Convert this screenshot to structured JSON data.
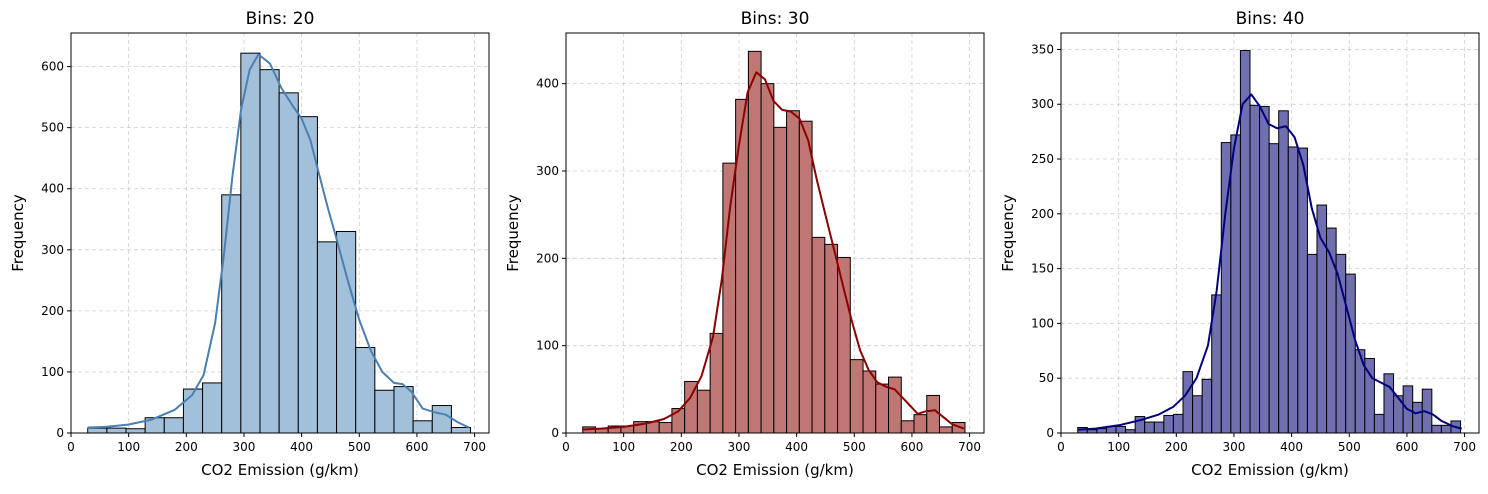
{
  "chart_data": [
    {
      "type": "bar",
      "title": "Bins: 20",
      "xlabel": "CO2 Emission (g/km)",
      "ylabel": "Frequency",
      "xlim": [
        0,
        725
      ],
      "ylim": [
        0,
        655
      ],
      "xticks": [
        0,
        100,
        200,
        300,
        400,
        500,
        600,
        700
      ],
      "yticks": [
        0,
        100,
        200,
        300,
        400,
        500,
        600
      ],
      "grid": true,
      "bar_color": "#a3c0db",
      "kde_color": "#4a7fb0",
      "bin_start": 29,
      "bin_width": 33.2,
      "values": [
        8,
        8,
        7,
        25,
        25,
        72,
        82,
        390,
        622,
        595,
        557,
        518,
        313,
        330,
        140,
        70,
        76,
        20,
        45,
        9
      ],
      "kde": [
        [
          29,
          9
        ],
        [
          60,
          10
        ],
        [
          100,
          14
        ],
        [
          140,
          22
        ],
        [
          180,
          38
        ],
        [
          210,
          62
        ],
        [
          230,
          95
        ],
        [
          250,
          180
        ],
        [
          265,
          290
        ],
        [
          280,
          420
        ],
        [
          295,
          530
        ],
        [
          310,
          595
        ],
        [
          325,
          620
        ],
        [
          345,
          605
        ],
        [
          365,
          565
        ],
        [
          385,
          535
        ],
        [
          400,
          515
        ],
        [
          415,
          480
        ],
        [
          430,
          425
        ],
        [
          445,
          370
        ],
        [
          460,
          320
        ],
        [
          480,
          250
        ],
        [
          500,
          185
        ],
        [
          520,
          135
        ],
        [
          540,
          100
        ],
        [
          560,
          82
        ],
        [
          575,
          80
        ],
        [
          590,
          68
        ],
        [
          610,
          40
        ],
        [
          630,
          34
        ],
        [
          650,
          30
        ],
        [
          670,
          18
        ],
        [
          690,
          9
        ]
      ]
    },
    {
      "type": "bar",
      "title": "Bins: 30",
      "xlabel": "CO2 Emission (g/km)",
      "ylabel": "Frequency",
      "xlim": [
        0,
        725
      ],
      "ylim": [
        0,
        458
      ],
      "xticks": [
        0,
        100,
        200,
        300,
        400,
        500,
        600,
        700
      ],
      "yticks": [
        0,
        100,
        200,
        300,
        400
      ],
      "grid": true,
      "bar_color": "#c07774",
      "kde_color": "#8b0000",
      "bin_start": 29,
      "bin_width": 22.1,
      "values": [
        7,
        5,
        8,
        8,
        13,
        13,
        12,
        28,
        59,
        49,
        114,
        309,
        382,
        437,
        400,
        350,
        369,
        357,
        224,
        216,
        201,
        84,
        71,
        56,
        64,
        14,
        21,
        43,
        7,
        12
      ],
      "kde": [
        [
          29,
          4
        ],
        [
          60,
          5
        ],
        [
          100,
          7
        ],
        [
          140,
          11
        ],
        [
          170,
          16
        ],
        [
          195,
          25
        ],
        [
          215,
          40
        ],
        [
          235,
          65
        ],
        [
          255,
          110
        ],
        [
          270,
          175
        ],
        [
          285,
          260
        ],
        [
          300,
          330
        ],
        [
          315,
          390
        ],
        [
          330,
          413
        ],
        [
          345,
          405
        ],
        [
          360,
          380
        ],
        [
          375,
          370
        ],
        [
          390,
          368
        ],
        [
          405,
          360
        ],
        [
          420,
          335
        ],
        [
          435,
          290
        ],
        [
          450,
          250
        ],
        [
          465,
          210
        ],
        [
          480,
          170
        ],
        [
          495,
          130
        ],
        [
          510,
          95
        ],
        [
          525,
          72
        ],
        [
          540,
          58
        ],
        [
          555,
          53
        ],
        [
          570,
          50
        ],
        [
          590,
          36
        ],
        [
          610,
          22
        ],
        [
          625,
          25
        ],
        [
          640,
          26
        ],
        [
          655,
          18
        ],
        [
          670,
          10
        ],
        [
          690,
          5
        ]
      ]
    },
    {
      "type": "bar",
      "title": "Bins: 40",
      "xlabel": "CO2 Emission (g/km)",
      "ylabel": "Frequency",
      "xlim": [
        0,
        725
      ],
      "ylim": [
        0,
        365
      ],
      "xticks": [
        0,
        100,
        200,
        300,
        400,
        500,
        600,
        700
      ],
      "yticks": [
        0,
        50,
        100,
        150,
        200,
        250,
        300,
        350
      ],
      "grid": true,
      "bar_color": "#7070b0",
      "kde_color": "#00007f",
      "bin_start": 29,
      "bin_width": 16.6,
      "values": [
        5,
        3,
        4,
        6,
        6,
        3,
        15,
        10,
        10,
        16,
        17,
        56,
        34,
        49,
        126,
        265,
        272,
        349,
        299,
        298,
        264,
        294,
        261,
        260,
        163,
        208,
        187,
        163,
        145,
        76,
        68,
        17,
        54,
        34,
        43,
        28,
        40,
        7,
        7,
        11
      ],
      "kde": [
        [
          29,
          3
        ],
        [
          60,
          4
        ],
        [
          100,
          7
        ],
        [
          140,
          12
        ],
        [
          170,
          17
        ],
        [
          195,
          24
        ],
        [
          215,
          34
        ],
        [
          235,
          50
        ],
        [
          255,
          80
        ],
        [
          270,
          130
        ],
        [
          285,
          200
        ],
        [
          300,
          260
        ],
        [
          315,
          300
        ],
        [
          330,
          309
        ],
        [
          345,
          298
        ],
        [
          360,
          282
        ],
        [
          375,
          278
        ],
        [
          390,
          280
        ],
        [
          405,
          270
        ],
        [
          420,
          245
        ],
        [
          435,
          205
        ],
        [
          450,
          178
        ],
        [
          465,
          165
        ],
        [
          480,
          145
        ],
        [
          495,
          115
        ],
        [
          510,
          85
        ],
        [
          525,
          62
        ],
        [
          540,
          50
        ],
        [
          555,
          46
        ],
        [
          570,
          42
        ],
        [
          585,
          32
        ],
        [
          600,
          22
        ],
        [
          615,
          18
        ],
        [
          630,
          20
        ],
        [
          645,
          17
        ],
        [
          660,
          11
        ],
        [
          680,
          6
        ],
        [
          695,
          4
        ]
      ]
    }
  ]
}
